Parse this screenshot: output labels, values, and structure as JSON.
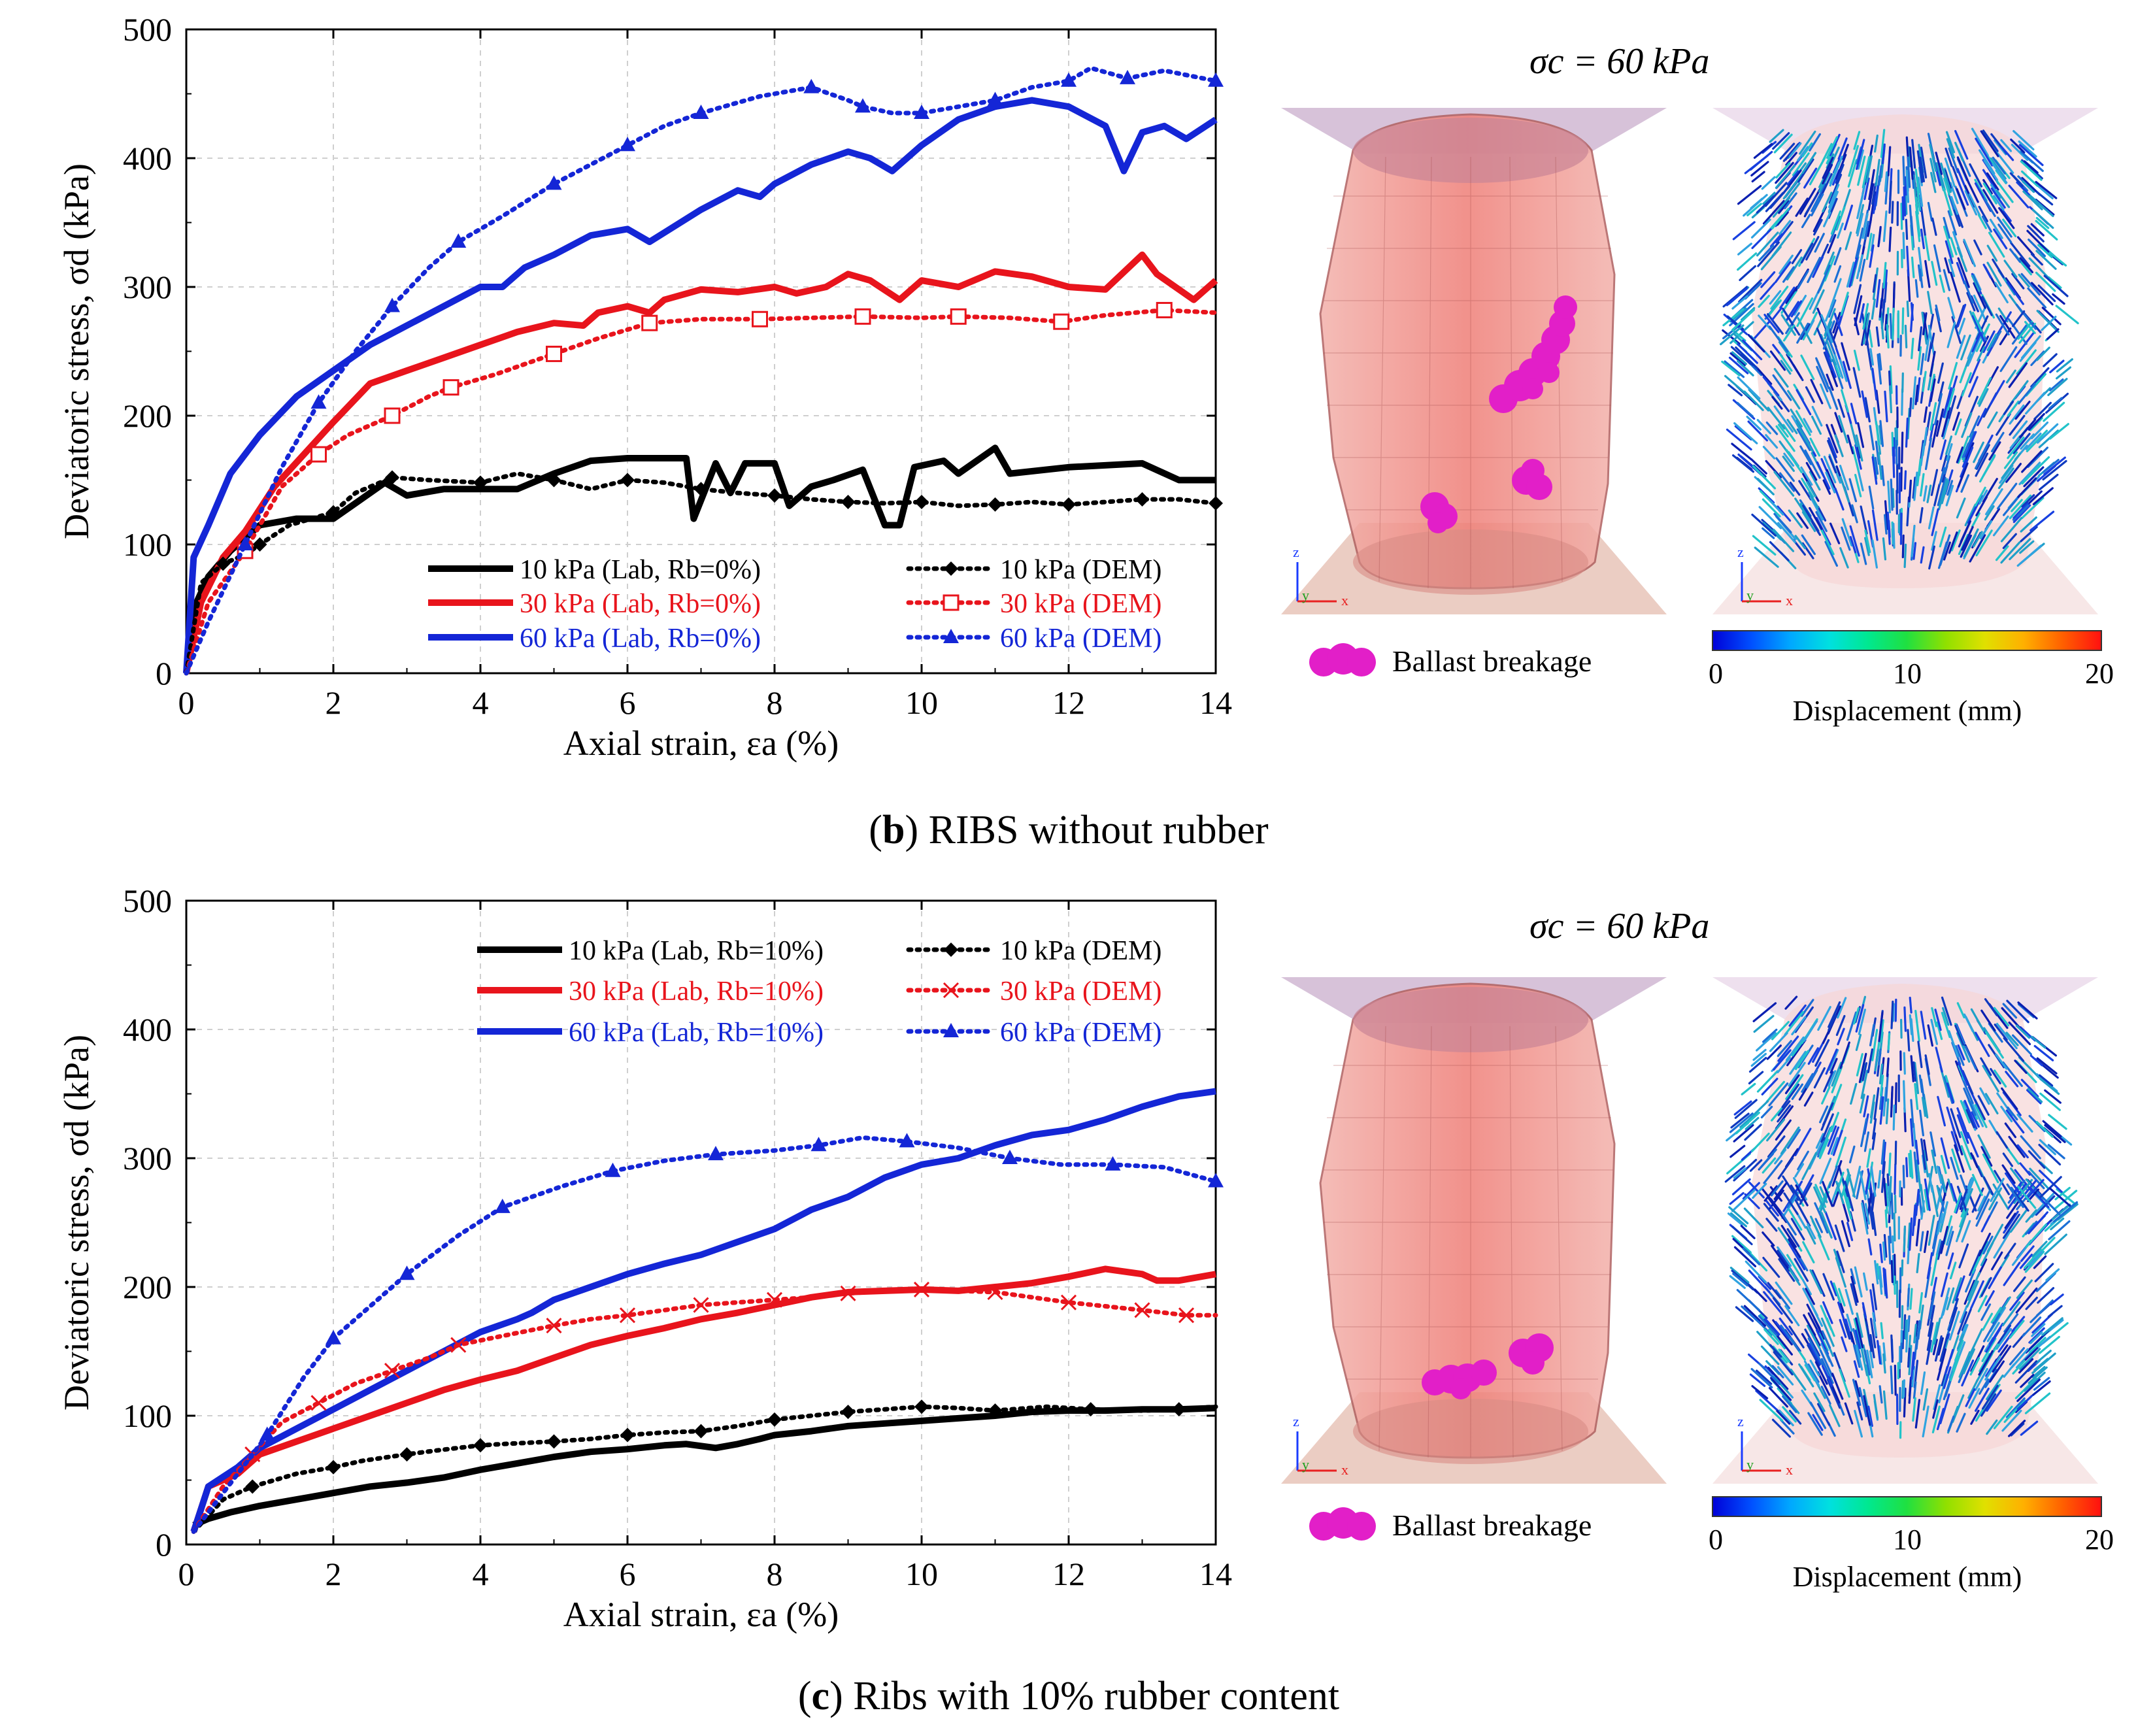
{
  "figure": {
    "panel_b": {
      "caption_letter": "b",
      "caption_text": "RIBS without rubber",
      "sigma_label": "σc = 60 kPa",
      "breakage_label": "Ballast breakage",
      "colorbar": {
        "title": "Displacement (mm)",
        "ticks": [
          "0",
          "10",
          "20"
        ]
      },
      "axis_triad": {
        "z": "z",
        "y": "y",
        "x": "x"
      }
    },
    "panel_c": {
      "caption_letter": "c",
      "caption_text": "Ribs with 10% rubber content",
      "sigma_label": "σc = 60 kPa",
      "breakage_label": "Ballast breakage",
      "colorbar": {
        "title": "Displacement (mm)",
        "ticks": [
          "0",
          "10",
          "20"
        ]
      },
      "axis_triad": {
        "z": "z",
        "y": "y",
        "x": "x"
      }
    },
    "colors": {
      "black": "#000000",
      "red": "#e8141c",
      "blue": "#1426d6",
      "magenta": "#e21fc8",
      "specimen": "#f08a8a",
      "plate": "#c7a9c9"
    }
  },
  "chart_data": [
    {
      "type": "line",
      "panel": "b",
      "xlabel": "Axial strain, εa (%)",
      "ylabel": "Deviatoric stress, σd (kPa)",
      "xlim": [
        0,
        14
      ],
      "ylim": [
        0,
        500
      ],
      "xticks": [
        0,
        2,
        4,
        6,
        8,
        10,
        12,
        14
      ],
      "yticks": [
        0,
        100,
        200,
        300,
        400,
        500
      ],
      "grid": true,
      "series": [
        {
          "name": "10 kPa (Lab, Rb=0%)",
          "color": "#000000",
          "style": "solid",
          "marker": "none",
          "x": [
            0,
            0.1,
            0.3,
            0.6,
            1.0,
            1.5,
            2.0,
            2.3,
            2.7,
            3.0,
            3.5,
            4.0,
            4.5,
            5.0,
            5.5,
            6.0,
            6.5,
            6.8,
            6.9,
            7.2,
            7.4,
            7.6,
            8.0,
            8.2,
            8.5,
            8.8,
            9.2,
            9.5,
            9.7,
            9.9,
            10.3,
            10.5,
            11.0,
            11.2,
            12.0,
            13.0,
            13.5,
            14.0
          ],
          "y": [
            0,
            50,
            75,
            95,
            115,
            120,
            120,
            132,
            148,
            138,
            143,
            143,
            143,
            155,
            165,
            167,
            167,
            167,
            120,
            163,
            140,
            163,
            163,
            130,
            145,
            150,
            158,
            115,
            115,
            160,
            165,
            155,
            175,
            155,
            160,
            163,
            150,
            150
          ]
        },
        {
          "name": "30 kPa (Lab, Rb=0%)",
          "color": "#e8141c",
          "style": "solid",
          "marker": "none",
          "x": [
            0,
            0.2,
            0.5,
            0.8,
            1.2,
            1.6,
            2.0,
            2.5,
            3.0,
            3.5,
            4.0,
            4.5,
            5.0,
            5.4,
            5.6,
            6.0,
            6.3,
            6.5,
            7.0,
            7.5,
            8.0,
            8.3,
            8.7,
            9.0,
            9.3,
            9.7,
            10.0,
            10.5,
            11.0,
            11.5,
            12.0,
            12.5,
            13.0,
            13.2,
            13.7,
            14.0
          ],
          "y": [
            0,
            55,
            90,
            110,
            145,
            170,
            195,
            225,
            235,
            245,
            255,
            265,
            272,
            270,
            280,
            285,
            280,
            290,
            298,
            296,
            300,
            295,
            300,
            310,
            305,
            290,
            305,
            300,
            312,
            308,
            300,
            298,
            325,
            310,
            290,
            305
          ]
        },
        {
          "name": "60 kPa (Lab, Rb=0%)",
          "color": "#1426d6",
          "style": "solid",
          "marker": "none",
          "x": [
            0,
            0.1,
            0.3,
            0.6,
            1.0,
            1.5,
            2.0,
            2.5,
            3.0,
            3.5,
            4.0,
            4.3,
            4.6,
            5.0,
            5.5,
            6.0,
            6.3,
            7.0,
            7.5,
            7.8,
            8.0,
            8.5,
            9.0,
            9.3,
            9.6,
            10.0,
            10.5,
            11.0,
            11.5,
            12.0,
            12.5,
            12.75,
            13.0,
            13.3,
            13.6,
            14.0
          ],
          "y": [
            0,
            90,
            115,
            155,
            185,
            215,
            235,
            255,
            270,
            285,
            300,
            300,
            315,
            325,
            340,
            345,
            335,
            360,
            375,
            370,
            380,
            395,
            405,
            400,
            390,
            410,
            430,
            440,
            445,
            440,
            425,
            390,
            420,
            425,
            415,
            430
          ]
        },
        {
          "name": "10 kPa (DEM)",
          "color": "#000000",
          "style": "dotted",
          "marker": "diamond",
          "x": [
            0,
            0.2,
            0.5,
            0.8,
            1.0,
            1.4,
            2.0,
            2.3,
            2.8,
            3.3,
            4.0,
            4.5,
            5.0,
            5.5,
            6.0,
            6.5,
            7.0,
            7.5,
            8.0,
            8.5,
            9.0,
            9.5,
            10.0,
            10.5,
            11.0,
            11.5,
            12.0,
            12.5,
            13.0,
            13.5,
            14.0
          ],
          "y": [
            0,
            70,
            85,
            92,
            100,
            115,
            125,
            140,
            152,
            150,
            148,
            155,
            150,
            143,
            150,
            148,
            143,
            140,
            138,
            135,
            133,
            132,
            133,
            130,
            131,
            133,
            131,
            133,
            135,
            135,
            132
          ]
        },
        {
          "name": "30 kPa (DEM)",
          "color": "#e8141c",
          "style": "dotted",
          "marker": "open-square",
          "x": [
            0,
            0.3,
            0.8,
            1.3,
            1.8,
            2.2,
            2.8,
            3.3,
            3.6,
            4.2,
            5.0,
            5.6,
            6.3,
            7.0,
            7.8,
            8.5,
            9.2,
            10.0,
            10.5,
            11.2,
            11.9,
            12.5,
            13.3,
            14.0
          ],
          "y": [
            0,
            55,
            95,
            145,
            170,
            185,
            200,
            215,
            222,
            232,
            248,
            260,
            272,
            275,
            275,
            276,
            277,
            276,
            277,
            276,
            273,
            278,
            282,
            280
          ]
        },
        {
          "name": "60 kPa (DEM)",
          "color": "#1426d6",
          "style": "dotted",
          "marker": "filled-triangle",
          "x": [
            0,
            0.3,
            0.8,
            1.3,
            1.8,
            2.3,
            2.8,
            3.3,
            3.7,
            4.3,
            5.0,
            5.5,
            6.0,
            6.5,
            7.0,
            7.8,
            8.5,
            9.0,
            9.2,
            9.6,
            10.0,
            10.5,
            11.0,
            11.5,
            12.0,
            12.3,
            12.8,
            13.3,
            14.0
          ],
          "y": [
            0,
            40,
            100,
            160,
            210,
            250,
            285,
            315,
            335,
            355,
            380,
            395,
            410,
            425,
            435,
            448,
            455,
            445,
            440,
            435,
            435,
            440,
            445,
            455,
            460,
            470,
            462,
            468,
            460
          ]
        }
      ]
    },
    {
      "type": "line",
      "panel": "c",
      "xlabel": "Axial strain, εa (%)",
      "ylabel": "Deviatoric stress, σd (kPa)",
      "xlim": [
        0,
        14
      ],
      "ylim": [
        0,
        500
      ],
      "xticks": [
        0,
        2,
        4,
        6,
        8,
        10,
        12,
        14
      ],
      "yticks": [
        0,
        100,
        200,
        300,
        400,
        500
      ],
      "grid": true,
      "series": [
        {
          "name": "10 kPa (Lab, Rb=10%)",
          "color": "#000000",
          "style": "solid",
          "marker": "none",
          "x": [
            0.1,
            0.3,
            0.6,
            1.0,
            1.5,
            2.0,
            2.5,
            3.0,
            3.5,
            4.0,
            4.5,
            5.0,
            5.5,
            6.0,
            6.5,
            6.8,
            7.2,
            7.5,
            7.8,
            8.0,
            8.5,
            9.0,
            9.5,
            10.0,
            10.5,
            11.0,
            11.5,
            12.0,
            12.5,
            13.0,
            13.5,
            14.0
          ],
          "y": [
            15,
            20,
            25,
            30,
            35,
            40,
            45,
            48,
            52,
            58,
            63,
            68,
            72,
            74,
            77,
            78,
            75,
            78,
            82,
            85,
            88,
            92,
            94,
            96,
            98,
            100,
            103,
            104,
            104,
            105,
            105,
            106
          ]
        },
        {
          "name": "30 kPa (Lab, Rb=10%)",
          "color": "#e8141c",
          "style": "solid",
          "marker": "none",
          "x": [
            0.1,
            0.3,
            0.7,
            1.0,
            1.5,
            2.0,
            2.5,
            3.0,
            3.5,
            4.0,
            4.5,
            5.0,
            5.5,
            6.0,
            6.5,
            7.0,
            7.5,
            8.0,
            8.5,
            9.0,
            9.5,
            10.0,
            10.5,
            11.0,
            11.5,
            12.0,
            12.5,
            13.0,
            13.2,
            13.5,
            14.0
          ],
          "y": [
            10,
            45,
            55,
            70,
            80,
            90,
            100,
            110,
            120,
            128,
            135,
            145,
            155,
            162,
            168,
            175,
            180,
            186,
            192,
            196,
            197,
            198,
            197,
            200,
            203,
            208,
            214,
            210,
            205,
            205,
            210
          ]
        },
        {
          "name": "60 kPa (Lab, Rb=10%)",
          "color": "#1426d6",
          "style": "solid",
          "marker": "none",
          "x": [
            0.1,
            0.3,
            0.7,
            1.0,
            1.5,
            2.0,
            2.5,
            3.0,
            3.5,
            4.0,
            4.5,
            4.7,
            5.0,
            5.5,
            6.0,
            6.5,
            7.0,
            7.5,
            8.0,
            8.5,
            9.0,
            9.5,
            10.0,
            10.5,
            11.0,
            11.5,
            12.0,
            12.5,
            13.0,
            13.5,
            14.0
          ],
          "y": [
            10,
            45,
            60,
            75,
            90,
            105,
            120,
            135,
            150,
            165,
            175,
            180,
            190,
            200,
            210,
            218,
            225,
            235,
            245,
            260,
            270,
            285,
            295,
            300,
            310,
            318,
            322,
            330,
            340,
            348,
            352
          ]
        },
        {
          "name": "10 kPa (DEM)",
          "color": "#000000",
          "style": "dotted",
          "marker": "diamond",
          "x": [
            0.1,
            0.5,
            0.9,
            1.5,
            2.0,
            2.4,
            3.0,
            3.4,
            4.0,
            4.3,
            5.0,
            5.5,
            6.0,
            6.5,
            7.0,
            7.5,
            8.0,
            8.5,
            9.0,
            9.5,
            10.0,
            10.5,
            11.0,
            11.7,
            12.3,
            13.0,
            13.5,
            14.0
          ],
          "y": [
            10,
            35,
            45,
            55,
            60,
            65,
            70,
            73,
            77,
            78,
            80,
            82,
            85,
            87,
            88,
            92,
            97,
            100,
            103,
            105,
            107,
            106,
            104,
            107,
            105,
            104,
            105,
            107
          ]
        },
        {
          "name": "30 kPa (DEM)",
          "color": "#e8141c",
          "style": "dotted",
          "marker": "x",
          "x": [
            0.1,
            0.5,
            0.9,
            1.3,
            1.8,
            2.3,
            2.8,
            3.3,
            3.7,
            4.3,
            5.0,
            5.5,
            6.0,
            6.5,
            7.0,
            7.5,
            8.0,
            8.5,
            9.0,
            9.5,
            10.0,
            10.5,
            11.0,
            11.5,
            12.0,
            12.5,
            13.0,
            13.3,
            13.6,
            14.0
          ],
          "y": [
            10,
            45,
            70,
            95,
            110,
            125,
            135,
            145,
            155,
            162,
            170,
            175,
            178,
            182,
            186,
            188,
            190,
            192,
            195,
            197,
            198,
            197,
            196,
            192,
            188,
            185,
            182,
            180,
            178,
            178
          ]
        },
        {
          "name": "60 kPa (DEM)",
          "color": "#1426d6",
          "style": "dotted",
          "marker": "filled-triangle",
          "x": [
            0.1,
            0.5,
            1.1,
            1.6,
            2.0,
            2.4,
            3.0,
            3.7,
            4.3,
            5.1,
            5.8,
            6.5,
            7.2,
            8.0,
            8.6,
            9.2,
            9.8,
            10.5,
            11.2,
            11.9,
            12.6,
            13.3,
            14.0
          ],
          "y": [
            10,
            40,
            85,
            130,
            160,
            180,
            210,
            240,
            262,
            278,
            290,
            298,
            303,
            306,
            310,
            316,
            313,
            308,
            300,
            295,
            295,
            293,
            282
          ]
        }
      ]
    }
  ]
}
